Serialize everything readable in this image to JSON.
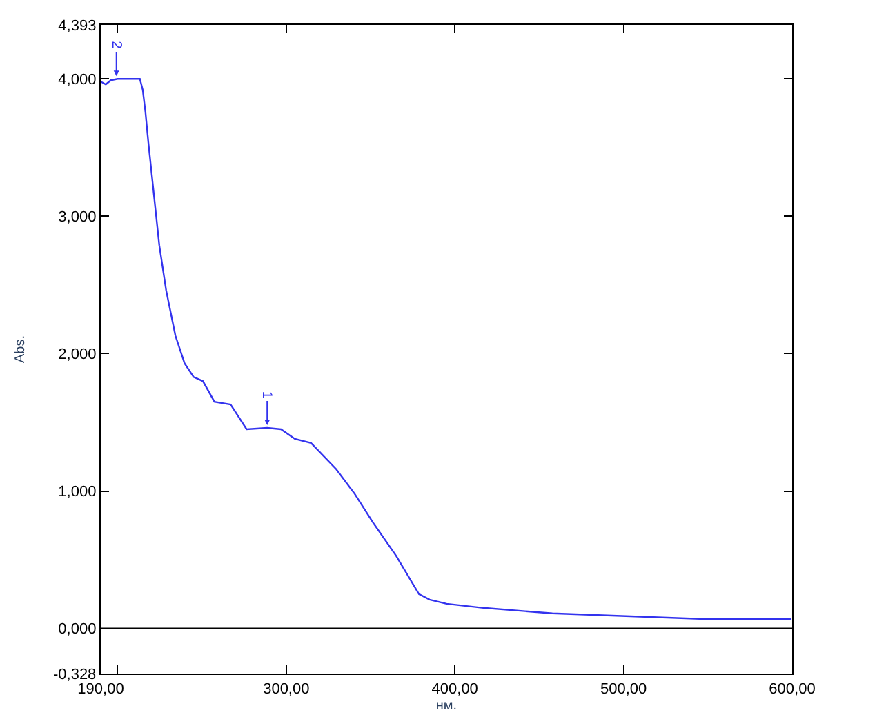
{
  "chart_data": {
    "type": "line",
    "xlabel": "нм.",
    "ylabel": "Abs.",
    "x": [
      190,
      193,
      196,
      200,
      205,
      213.2,
      214.9,
      216.5,
      218.2,
      224.7,
      228.8,
      234.3,
      239.7,
      245.1,
      250.6,
      257.4,
      267,
      276.5,
      288.7,
      296.9,
      305.1,
      314.7,
      329.6,
      340.6,
      351.5,
      365.1,
      378.7,
      385,
      395.1,
      416.9,
      457.8,
      545.1,
      599.6
    ],
    "series": [
      {
        "color": "#3333ee",
        "values": [
          3.98,
          3.96,
          3.99,
          4.0,
          4.0,
          4.0,
          3.92,
          3.76,
          3.54,
          2.79,
          2.46,
          2.13,
          1.93,
          1.83,
          1.8,
          1.65,
          1.63,
          1.45,
          1.46,
          1.45,
          1.38,
          1.35,
          1.16,
          0.98,
          0.77,
          0.53,
          0.25,
          0.21,
          0.18,
          0.15,
          0.11,
          0.07,
          0.07
        ]
      }
    ],
    "xlim": [
      190,
      600
    ],
    "ylim": [
      -0.328,
      4.393
    ],
    "xticks": [
      {
        "value": 190,
        "label": "190,00"
      },
      {
        "value": 200,
        "label": null
      },
      {
        "value": 300,
        "label": "300,00"
      },
      {
        "value": 400,
        "label": "400,00"
      },
      {
        "value": 500,
        "label": "500,00"
      },
      {
        "value": 600,
        "label": "600,00"
      }
    ],
    "yticks": [
      {
        "value": -0.328,
        "label": "-0,328"
      },
      {
        "value": 0,
        "label": "0,000"
      },
      {
        "value": 1,
        "label": "1,000"
      },
      {
        "value": 2,
        "label": "2,000"
      },
      {
        "value": 3,
        "label": "3,000"
      },
      {
        "value": 4,
        "label": "4,000"
      },
      {
        "value": 4.393,
        "label": "4,393"
      }
    ],
    "annotations": [
      {
        "text": "1",
        "x": 288.7,
        "y": 1.46
      },
      {
        "text": "2",
        "x": 199.3,
        "y": 4.0
      }
    ],
    "ref_lines": [
      {
        "axis": "y",
        "value": 0,
        "color": "#000000"
      }
    ],
    "marker": "none",
    "line_style": "solid"
  }
}
